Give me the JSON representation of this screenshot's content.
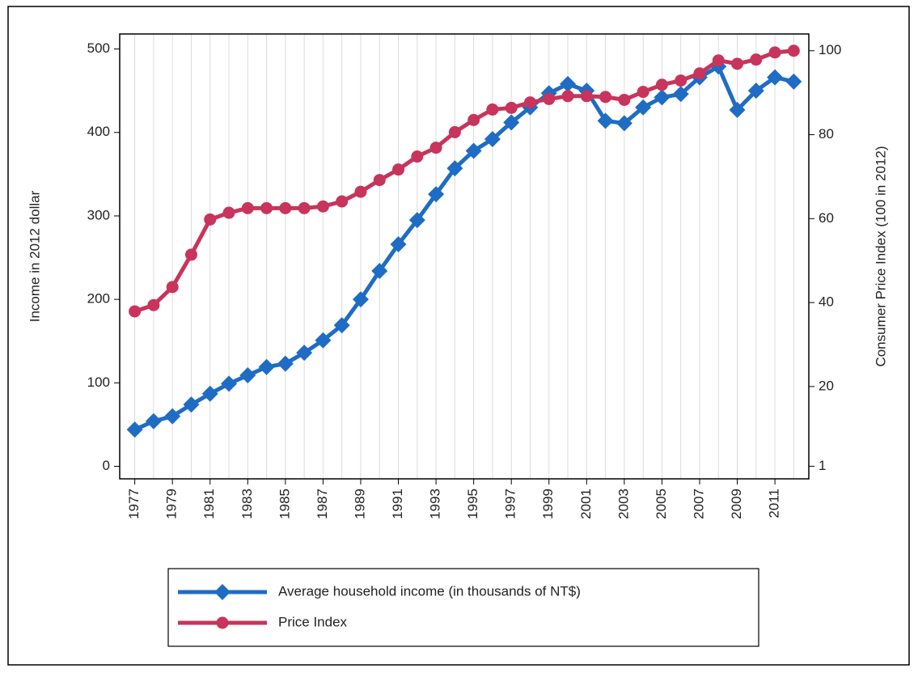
{
  "chart_data": {
    "type": "line",
    "y_label": "Income in 2012 dollar",
    "y2_label": "Consumer Price Index (100 in 2012)",
    "x": [
      1977,
      1978,
      1979,
      1980,
      1981,
      1982,
      1983,
      1984,
      1985,
      1986,
      1987,
      1988,
      1989,
      1990,
      1991,
      1992,
      1993,
      1994,
      1995,
      1996,
      1997,
      1998,
      1999,
      2000,
      2001,
      2002,
      2003,
      2004,
      2005,
      2006,
      2007,
      2008,
      2009,
      2010,
      2011,
      2012
    ],
    "xlim": [
      1976.2,
      2012.8
    ],
    "xticks": [
      1977,
      1979,
      1981,
      1983,
      1985,
      1987,
      1989,
      1991,
      1993,
      1995,
      1997,
      1999,
      2001,
      2003,
      2005,
      2007,
      2009,
      2011
    ],
    "ylim": [
      -15,
      518
    ],
    "yticks": [
      0,
      100,
      200,
      300,
      400,
      500
    ],
    "y2lim": [
      -2,
      104
    ],
    "y2ticks": [
      1,
      20,
      40,
      60,
      80,
      100
    ],
    "grid": true,
    "legend": "bottom",
    "series": [
      {
        "name": "Average household income (in thousands of NT$)",
        "color": "#1f6cc4",
        "marker": "diamond",
        "values": [
          44,
          54,
          60,
          74,
          87,
          99,
          109,
          119,
          123,
          136,
          151,
          169,
          200,
          234,
          266,
          295,
          326,
          357,
          378,
          392,
          412,
          430,
          447,
          458,
          450,
          414,
          411,
          430,
          442,
          446,
          466,
          479,
          427,
          450,
          466,
          461
        ]
      },
      {
        "name": "Price Index",
        "color": "#c8345c",
        "marker": "circle",
        "axis": "y2",
        "values": [
          37.9,
          39.4,
          43.7,
          51.4,
          59.8,
          61.4,
          62.5,
          62.5,
          62.5,
          62.5,
          62.9,
          64.1,
          66.4,
          69.2,
          71.7,
          74.8,
          76.9,
          80.6,
          83.5,
          86,
          86.4,
          87.7,
          88.5,
          89.2,
          89.2,
          89,
          88.3,
          90.2,
          91.9,
          92.9,
          94.6,
          97.7,
          96.9,
          97.9,
          99.6,
          100
        ]
      }
    ]
  }
}
